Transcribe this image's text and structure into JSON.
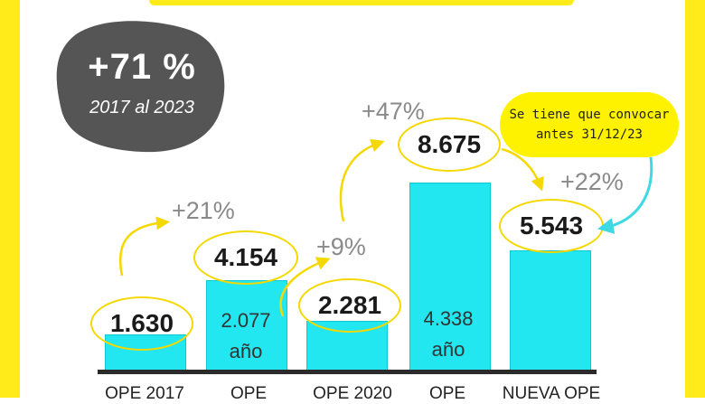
{
  "headline": {
    "value": "+71 %",
    "subtitle": "2017 al 2023"
  },
  "note": {
    "line1": "Se tiene que convocar",
    "line2": "antes 31/12/23"
  },
  "chart_data": {
    "type": "bar",
    "categories": [
      "OPE 2017",
      "OPE",
      "OPE 2020",
      "OPE",
      "NUEVA OPE"
    ],
    "values": [
      1630,
      4154,
      2281,
      8675,
      5543
    ],
    "value_labels": [
      "1.630",
      "4.154",
      "2.281",
      "8.675",
      "5.543"
    ],
    "inner_labels": [
      "",
      "2.077 año",
      "",
      "4.338 año",
      ""
    ],
    "inner_lines": [
      [
        "",
        ""
      ],
      [
        "2.077",
        "año"
      ],
      [
        "",
        ""
      ],
      [
        "4.338",
        "año"
      ],
      [
        "",
        ""
      ]
    ],
    "changes": [
      "+21%",
      "+9%",
      "+47%",
      "+22%"
    ],
    "colors": {
      "bar": "#22e6f0",
      "accent": "#ffeb1a",
      "blob": "#555555"
    }
  }
}
